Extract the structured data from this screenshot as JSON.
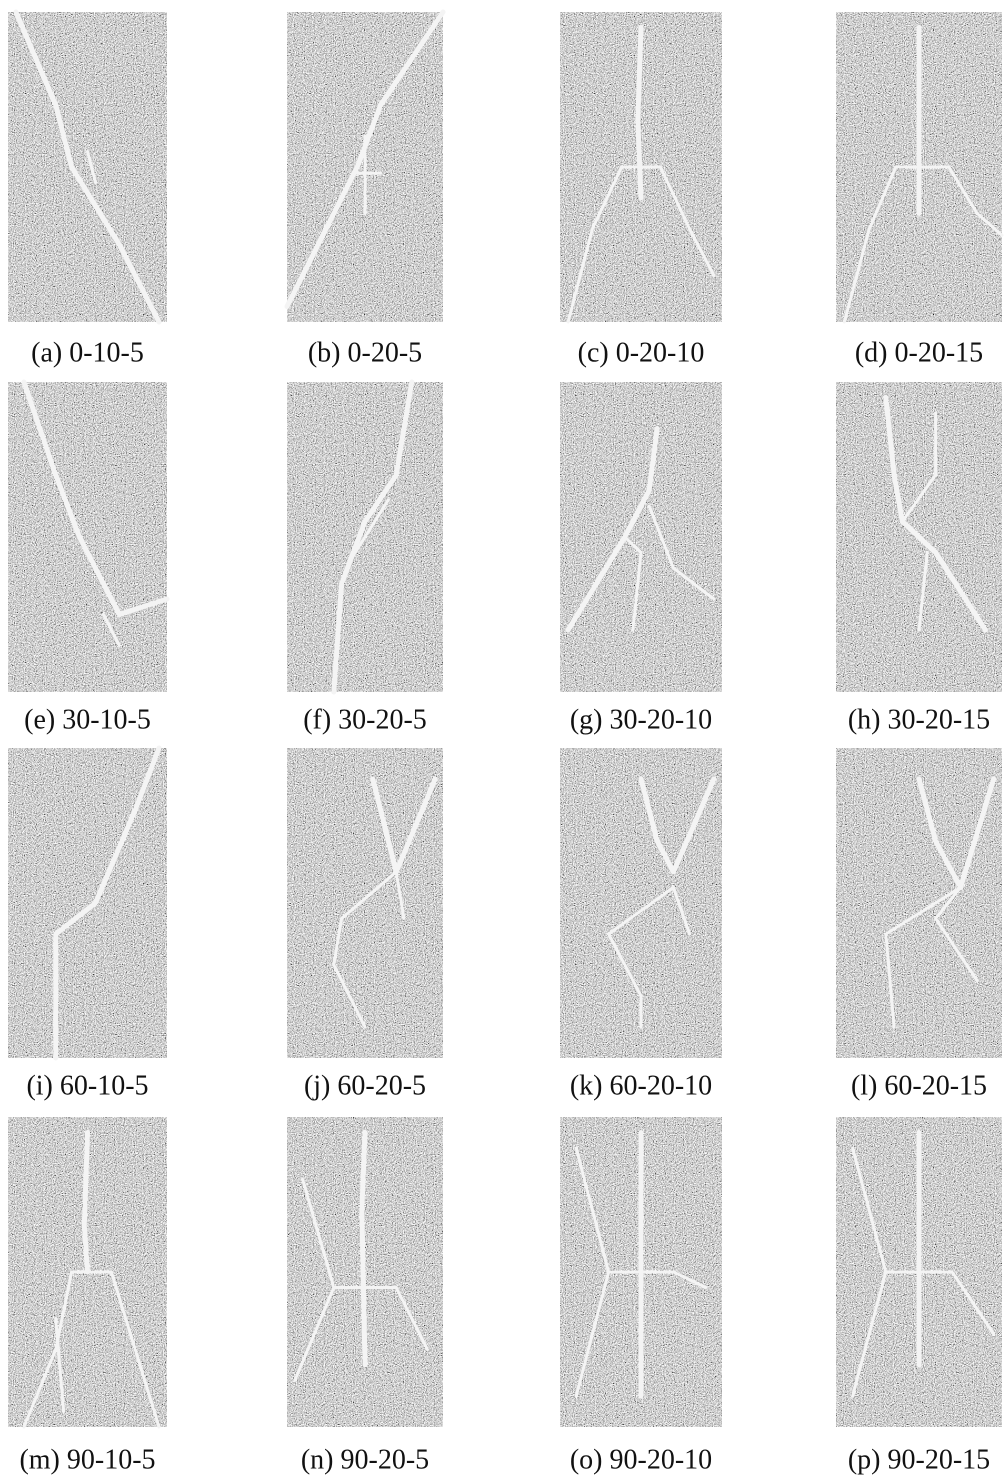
{
  "panels": [
    {
      "label": "(a) 0-10-5"
    },
    {
      "label": "(b) 0-20-5"
    },
    {
      "label": "(c) 0-20-10"
    },
    {
      "label": "(d) 0-20-15"
    },
    {
      "label": "(e) 30-10-5"
    },
    {
      "label": "(f) 30-20-5"
    },
    {
      "label": "(g) 30-20-10"
    },
    {
      "label": "(h) 30-20-15"
    },
    {
      "label": "(i) 60-10-5"
    },
    {
      "label": "(j) 60-20-5"
    },
    {
      "label": "(k) 60-20-10"
    },
    {
      "label": "(l) 60-20-15"
    },
    {
      "label": "(m) 90-10-5"
    },
    {
      "label": "(n) 90-20-5"
    },
    {
      "label": "(o) 90-20-10"
    },
    {
      "label": "(p) 90-20-15"
    }
  ]
}
